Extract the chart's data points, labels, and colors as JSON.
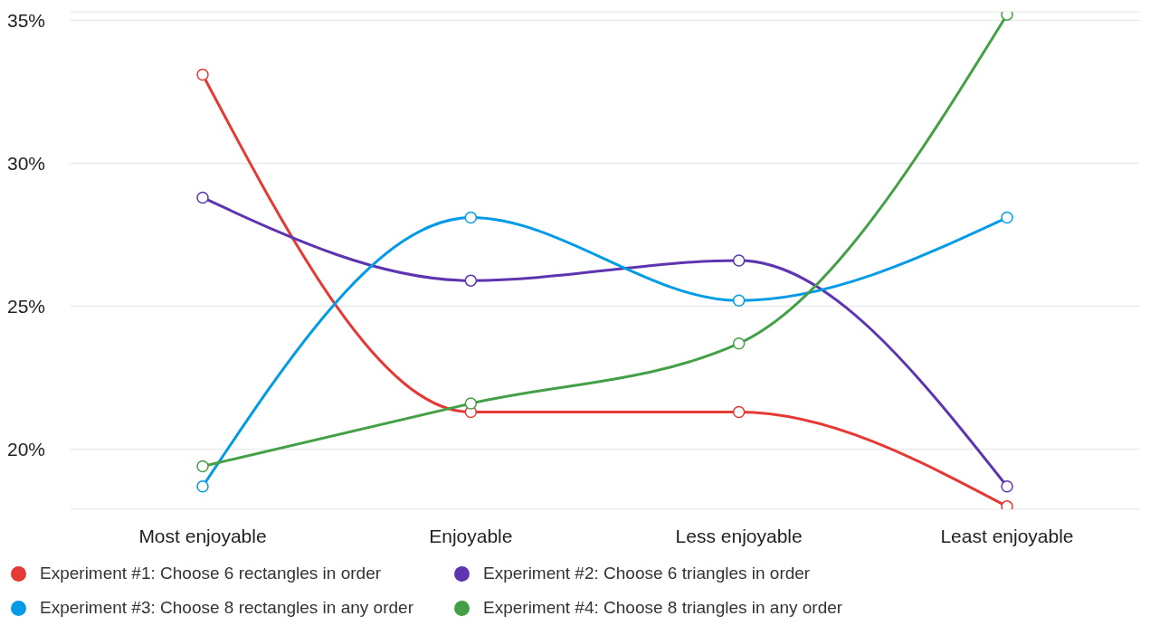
{
  "chart_data": {
    "type": "line",
    "categories": [
      "Most enjoyable",
      "Enjoyable",
      "Less enjoyable",
      "Least enjoyable"
    ],
    "series": [
      {
        "name": "Experiment #1: Choose 6 rectangles in order",
        "color": "#e53935",
        "values": [
          33.1,
          21.3,
          21.3,
          18.0
        ]
      },
      {
        "name": "Experiment #2: Choose 6 triangles in order",
        "color": "#5e35b1",
        "values": [
          28.8,
          25.9,
          26.6,
          18.7
        ]
      },
      {
        "name": "Experiment #3: Choose 8 rectangles in any order",
        "color": "#039be5",
        "values": [
          18.7,
          28.1,
          25.2,
          28.1
        ]
      },
      {
        "name": "Experiment #4: Choose 8 triangles in any order",
        "color": "#43a047",
        "values": [
          19.4,
          21.6,
          23.7,
          35.2
        ]
      }
    ],
    "ylim": [
      17.9,
      35.3
    ],
    "yticks": [
      {
        "value": 20,
        "label": "20%"
      },
      {
        "value": 25,
        "label": "25%"
      },
      {
        "value": 30,
        "label": "30%"
      },
      {
        "value": 35,
        "label": "35%"
      }
    ],
    "grid": "y",
    "legend": "bottom",
    "marker": "circle",
    "line_style": "solid"
  }
}
